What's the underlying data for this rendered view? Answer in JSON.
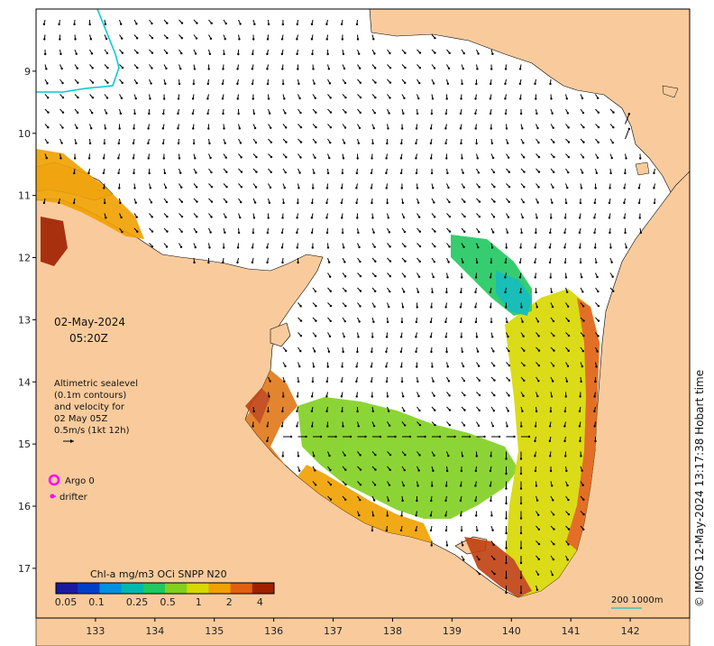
{
  "map": {
    "lat_ticks": [
      "9",
      "10",
      "11",
      "12",
      "13",
      "14",
      "15",
      "16",
      "17"
    ],
    "lon_ticks": [
      "133",
      "134",
      "135",
      "136",
      "137",
      "138",
      "139",
      "140",
      "141",
      "142"
    ],
    "lat_values": [
      -9,
      -10,
      -11,
      -12,
      -13,
      -14,
      -15,
      -16,
      -17
    ],
    "lon_values": [
      133,
      134,
      135,
      136,
      137,
      138,
      139,
      140,
      141,
      142
    ],
    "extent": {
      "lon_min": 132,
      "lon_max": 143,
      "lat_min": -17.8,
      "lat_max": -8
    }
  },
  "datetime": {
    "date": "02-May-2024",
    "time": "05:20Z"
  },
  "altimetry_note": {
    "line1": "Altimetric sealevel",
    "line2": "(0.1m contours)",
    "line3": "and velocity for",
    "line4": "02 May 05Z",
    "line5": "0.5m/s (1kt 12h)"
  },
  "legend": {
    "argo_label": "Argo 0",
    "drifter_label": "drifter",
    "argo_color": "#ff00ff",
    "drifter_color": "#ff00ff"
  },
  "colorbar": {
    "title": "Chl-a mg/m3 OCi SNPP N20",
    "ticks": [
      "0.05",
      "0.1",
      "0.25",
      "0.5",
      "1",
      "2",
      "4"
    ],
    "colors": [
      "#1a1aa0",
      "#0040c8",
      "#0090e0",
      "#00b8b0",
      "#20c860",
      "#80d020",
      "#d8d800",
      "#f0a000",
      "#e06010",
      "#a02000"
    ]
  },
  "scale_bar": {
    "label": "200  1000m",
    "color": "#40c0c0"
  },
  "credit": "© IMOS 12-May-2024 13:17:38 Hobart time",
  "colors": {
    "land": "#f9cb9c",
    "ocean": "#ffffff",
    "contour": "#00c8d0",
    "arrow": "#000000"
  }
}
